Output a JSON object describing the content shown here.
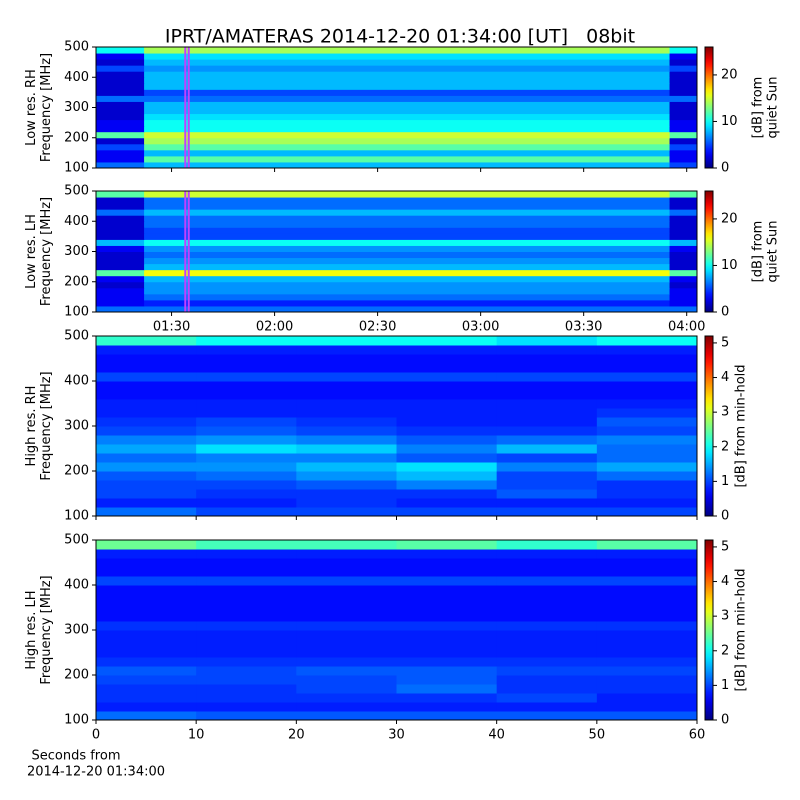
{
  "chart_data": [
    {
      "type": "heatmap",
      "title": "IPRT/AMATERAS 2014-12-20 01:34:00 [UT]   08bit",
      "ylabel": [
        "Low res. RH",
        "Frequency [MHz]"
      ],
      "clabel": [
        "[dB] from",
        "quiet Sun"
      ],
      "xlim": [
        "01:08",
        "04:03"
      ],
      "xticks": [
        "01:30",
        "02:00",
        "02:30",
        "03:00",
        "03:30",
        "04:00"
      ],
      "xticklabels": false,
      "ylim": [
        100,
        500
      ],
      "yticks": [
        100,
        200,
        300,
        400,
        500
      ],
      "clim": [
        0,
        26
      ],
      "cticks": [
        0,
        10,
        20
      ],
      "highlight": [
        "01:34",
        "01:35"
      ],
      "highlight_color": "#c040ff",
      "xbins": [
        "01:08",
        "01:22",
        "03:55",
        "04:03"
      ],
      "ybins": [
        100,
        120,
        140,
        160,
        180,
        200,
        220,
        240,
        260,
        280,
        300,
        320,
        340,
        360,
        380,
        400,
        420,
        440,
        460,
        480,
        500
      ],
      "z": [
        [
          6,
          8,
          5
        ],
        [
          3,
          12,
          3
        ],
        [
          3,
          8,
          3
        ],
        [
          5,
          12,
          5
        ],
        [
          2,
          14,
          2
        ],
        [
          12,
          15,
          12
        ],
        [
          3,
          10,
          3
        ],
        [
          3,
          10,
          3
        ],
        [
          2,
          9,
          2
        ],
        [
          2,
          8,
          2
        ],
        [
          2,
          8,
          2
        ],
        [
          6,
          6,
          6
        ],
        [
          2,
          5,
          2
        ],
        [
          2,
          8,
          2
        ],
        [
          2,
          8,
          2
        ],
        [
          2,
          8,
          2
        ],
        [
          5,
          7,
          5
        ],
        [
          2,
          8,
          2
        ],
        [
          3,
          9,
          3
        ],
        [
          10,
          14,
          10
        ]
      ]
    },
    {
      "type": "heatmap",
      "ylabel": [
        "Low res. LH",
        "Frequency [MHz]"
      ],
      "clabel": [
        "[dB] from",
        "quiet Sun"
      ],
      "xlim": [
        "01:08",
        "04:03"
      ],
      "xticks": [
        "01:30",
        "02:00",
        "02:30",
        "03:00",
        "03:30",
        "04:00"
      ],
      "xticklabels": true,
      "ylim": [
        100,
        500
      ],
      "yticks": [
        100,
        200,
        300,
        400,
        500
      ],
      "clim": [
        0,
        26
      ],
      "cticks": [
        0,
        10,
        20
      ],
      "highlight": [
        "01:34",
        "01:35"
      ],
      "highlight_color": "#c040ff",
      "xbins": [
        "01:08",
        "01:22",
        "03:55",
        "04:03"
      ],
      "ybins": [
        100,
        120,
        140,
        160,
        180,
        200,
        220,
        240,
        260,
        280,
        300,
        320,
        340,
        360,
        380,
        400,
        420,
        440,
        460,
        480,
        500
      ],
      "z": [
        [
          6,
          6,
          6
        ],
        [
          3,
          4,
          3
        ],
        [
          3,
          6,
          3
        ],
        [
          3,
          7,
          3
        ],
        [
          2,
          7,
          2
        ],
        [
          3,
          8,
          3
        ],
        [
          12,
          16,
          12
        ],
        [
          2,
          8,
          2
        ],
        [
          2,
          7,
          2
        ],
        [
          2,
          6,
          2
        ],
        [
          3,
          7,
          3
        ],
        [
          8,
          10,
          8
        ],
        [
          2,
          5,
          2
        ],
        [
          2,
          5,
          2
        ],
        [
          2,
          6,
          2
        ],
        [
          2,
          6,
          2
        ],
        [
          6,
          8,
          6
        ],
        [
          2,
          6,
          2
        ],
        [
          2,
          6,
          2
        ],
        [
          12,
          15,
          12
        ]
      ]
    },
    {
      "type": "heatmap",
      "ylabel": [
        "High res. RH",
        "Frequency [MHz]"
      ],
      "clabel": [
        "[dB] from min-hold"
      ],
      "xlim": [
        0,
        60
      ],
      "xticks": [
        0,
        10,
        20,
        30,
        40,
        50,
        60
      ],
      "xticklabels": false,
      "ylim": [
        100,
        500
      ],
      "yticks": [
        100,
        200,
        300,
        400,
        500
      ],
      "clim": [
        0,
        5.2
      ],
      "cticks": [
        0,
        1,
        2,
        3,
        4,
        5
      ],
      "xbins": [
        0,
        10,
        20,
        30,
        40,
        50,
        60
      ],
      "ybins": [
        100,
        120,
        140,
        160,
        180,
        200,
        220,
        240,
        260,
        280,
        300,
        320,
        340,
        360,
        380,
        400,
        420,
        440,
        460,
        480,
        500
      ],
      "z": [
        [
          1.2,
          1.0,
          1.0,
          1.0,
          1.0,
          1.0
        ],
        [
          0.8,
          0.8,
          0.9,
          0.8,
          0.8,
          0.8
        ],
        [
          1.0,
          0.9,
          0.9,
          0.9,
          1.1,
          0.9
        ],
        [
          1.0,
          1.0,
          1.1,
          1.3,
          1.0,
          0.9
        ],
        [
          1.1,
          1.2,
          1.4,
          1.6,
          1.0,
          1.2
        ],
        [
          1.4,
          1.4,
          1.6,
          1.8,
          1.3,
          1.5
        ],
        [
          1.2,
          1.3,
          1.3,
          1.1,
          1.0,
          1.2
        ],
        [
          1.5,
          1.8,
          1.7,
          1.3,
          1.6,
          1.2
        ],
        [
          1.3,
          1.4,
          1.3,
          1.1,
          1.2,
          1.3
        ],
        [
          1.0,
          1.1,
          1.0,
          0.9,
          0.9,
          1.0
        ],
        [
          0.9,
          1.0,
          0.9,
          0.8,
          0.8,
          1.1
        ],
        [
          0.8,
          0.8,
          0.8,
          0.8,
          0.8,
          0.9
        ],
        [
          0.8,
          0.8,
          0.8,
          0.8,
          0.8,
          0.8
        ],
        [
          0.7,
          0.7,
          0.7,
          0.7,
          0.7,
          0.7
        ],
        [
          0.7,
          0.7,
          0.7,
          0.7,
          0.7,
          0.7
        ],
        [
          1.0,
          1.0,
          1.0,
          1.0,
          1.0,
          1.0
        ],
        [
          0.7,
          0.7,
          0.7,
          0.7,
          0.7,
          0.7
        ],
        [
          0.7,
          0.7,
          0.7,
          0.7,
          0.7,
          0.7
        ],
        [
          0.8,
          0.8,
          0.8,
          0.8,
          0.8,
          0.8
        ],
        [
          2.2,
          2.0,
          2.0,
          2.0,
          1.8,
          2.0
        ]
      ]
    },
    {
      "type": "heatmap",
      "ylabel": [
        "High res. LH",
        "Frequency [MHz]"
      ],
      "clabel": [
        "[dB] from min-hold"
      ],
      "xlim": [
        0,
        60
      ],
      "xticks": [
        0,
        10,
        20,
        30,
        40,
        50,
        60
      ],
      "xticklabels": true,
      "xlabel": [
        "Seconds from",
        "2014-12-20 01:34:00"
      ],
      "ylim": [
        100,
        500
      ],
      "yticks": [
        100,
        200,
        300,
        400,
        500
      ],
      "clim": [
        0,
        5.2
      ],
      "cticks": [
        0,
        1,
        2,
        3,
        4,
        5
      ],
      "xbins": [
        0,
        10,
        20,
        30,
        40,
        50,
        60
      ],
      "ybins": [
        100,
        120,
        140,
        160,
        180,
        200,
        220,
        240,
        260,
        280,
        300,
        320,
        340,
        360,
        380,
        400,
        420,
        440,
        460,
        480,
        500
      ],
      "z": [
        [
          1.2,
          1.1,
          1.1,
          1.1,
          1.1,
          1.1
        ],
        [
          0.8,
          0.8,
          0.8,
          0.8,
          0.8,
          0.8
        ],
        [
          0.9,
          0.9,
          0.9,
          0.9,
          1.0,
          0.8
        ],
        [
          0.9,
          0.9,
          1.0,
          1.2,
          0.9,
          0.9
        ],
        [
          1.0,
          1.0,
          1.0,
          1.1,
          0.9,
          0.9
        ],
        [
          1.1,
          1.0,
          1.1,
          1.1,
          1.0,
          1.0
        ],
        [
          0.9,
          0.9,
          0.9,
          0.9,
          0.9,
          0.9
        ],
        [
          0.8,
          0.8,
          0.8,
          0.8,
          0.8,
          0.8
        ],
        [
          0.8,
          0.8,
          0.8,
          0.8,
          0.8,
          0.8
        ],
        [
          0.8,
          0.8,
          0.8,
          0.8,
          0.8,
          0.8
        ],
        [
          0.9,
          0.9,
          0.9,
          0.9,
          0.9,
          0.9
        ],
        [
          0.7,
          0.7,
          0.7,
          0.7,
          0.7,
          0.7
        ],
        [
          0.7,
          0.7,
          0.7,
          0.7,
          0.7,
          0.7
        ],
        [
          0.7,
          0.7,
          0.7,
          0.7,
          0.7,
          0.7
        ],
        [
          0.7,
          0.7,
          0.7,
          0.7,
          0.7,
          0.7
        ],
        [
          1.0,
          1.0,
          1.0,
          1.0,
          1.0,
          1.0
        ],
        [
          0.7,
          0.7,
          0.7,
          0.7,
          0.7,
          0.7
        ],
        [
          0.7,
          0.7,
          0.7,
          0.7,
          0.7,
          0.7
        ],
        [
          0.8,
          0.8,
          0.8,
          0.8,
          0.8,
          0.8
        ],
        [
          2.5,
          2.3,
          2.3,
          2.4,
          2.2,
          2.4
        ]
      ]
    }
  ]
}
